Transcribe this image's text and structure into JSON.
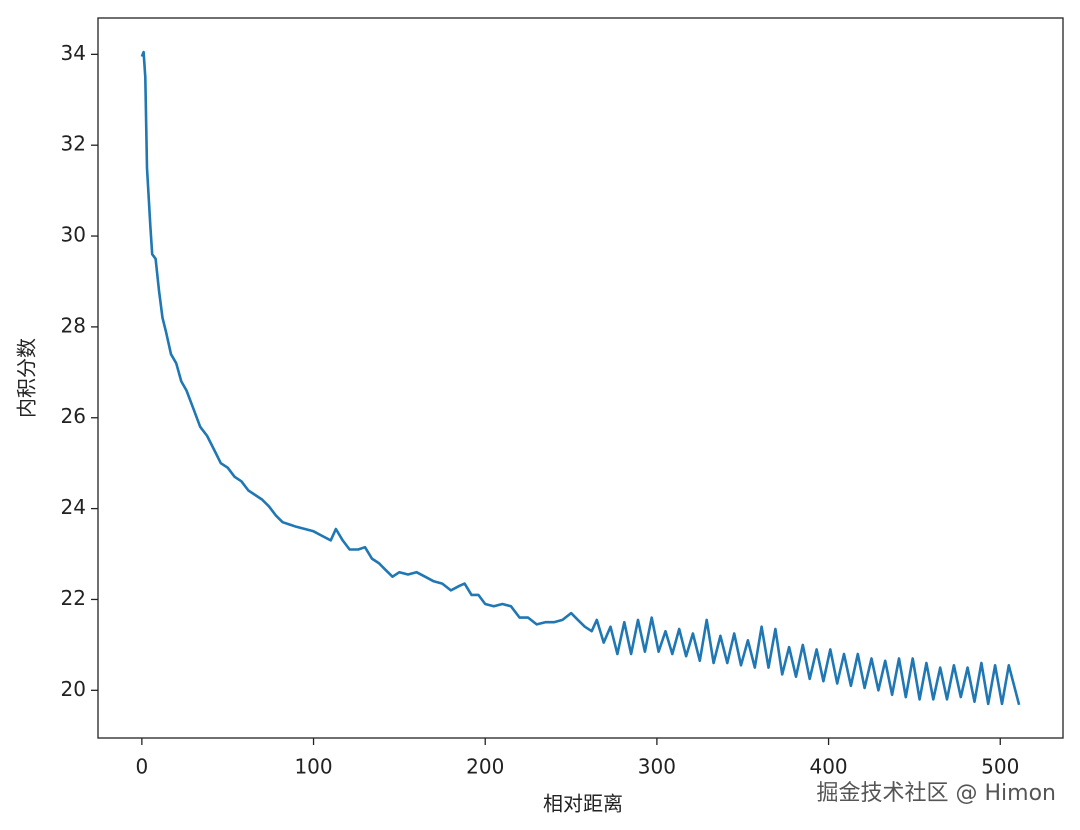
{
  "chart_data": {
    "type": "line",
    "xlabel": "相对距离",
    "ylabel": "内积分数",
    "watermark": "掘金技术社区 @ Himon",
    "xlim": [
      -25.55,
      536.55
    ],
    "ylim": [
      18.95,
      34.8
    ],
    "xticks": [
      0,
      100,
      200,
      300,
      400,
      500
    ],
    "yticks": [
      20,
      22,
      24,
      26,
      28,
      30,
      32,
      34
    ],
    "series": [
      {
        "color": "#1f77b4",
        "x": [
          0,
          1,
          2,
          3,
          5,
          6,
          8,
          10,
          12,
          14,
          17,
          20,
          23,
          26,
          30,
          34,
          38,
          42,
          46,
          50,
          54,
          58,
          62,
          66,
          70,
          74,
          78,
          82,
          86,
          90,
          95,
          100,
          105,
          110,
          113,
          117,
          121,
          126,
          130,
          134,
          138,
          142,
          146,
          150,
          155,
          160,
          165,
          170,
          175,
          180,
          185,
          188,
          192,
          196,
          200,
          205,
          210,
          215,
          220,
          225,
          230,
          235,
          240,
          245,
          250,
          254,
          258,
          262,
          265,
          269,
          273,
          277,
          281,
          285,
          289,
          293,
          297,
          301,
          305,
          309,
          313,
          317,
          321,
          325,
          329,
          333,
          337,
          341,
          345,
          349,
          353,
          357,
          361,
          365,
          369,
          373,
          377,
          381,
          385,
          389,
          393,
          397,
          401,
          405,
          409,
          413,
          417,
          421,
          425,
          429,
          433,
          437,
          441,
          445,
          449,
          453,
          457,
          461,
          465,
          469,
          473,
          477,
          481,
          485,
          489,
          493,
          497,
          501,
          505,
          511
        ],
        "values": [
          33.95,
          34.05,
          33.5,
          31.5,
          30.2,
          29.6,
          29.5,
          28.8,
          28.2,
          27.9,
          27.4,
          27.2,
          26.8,
          26.6,
          26.2,
          25.8,
          25.6,
          25.3,
          25.0,
          24.9,
          24.7,
          24.6,
          24.4,
          24.3,
          24.2,
          24.05,
          23.85,
          23.7,
          23.65,
          23.6,
          23.55,
          23.5,
          23.4,
          23.3,
          23.55,
          23.3,
          23.1,
          23.1,
          23.15,
          22.9,
          22.8,
          22.65,
          22.5,
          22.6,
          22.55,
          22.6,
          22.5,
          22.4,
          22.35,
          22.2,
          22.3,
          22.35,
          22.1,
          22.1,
          21.9,
          21.85,
          21.9,
          21.85,
          21.6,
          21.6,
          21.45,
          21.5,
          21.5,
          21.55,
          21.7,
          21.55,
          21.4,
          21.3,
          21.55,
          21.05,
          21.4,
          20.8,
          21.5,
          20.8,
          21.55,
          20.85,
          21.6,
          20.85,
          21.3,
          20.8,
          21.35,
          20.75,
          21.25,
          20.65,
          21.55,
          20.6,
          21.2,
          20.6,
          21.25,
          20.55,
          21.1,
          20.5,
          21.4,
          20.5,
          21.35,
          20.35,
          20.95,
          20.3,
          21.0,
          20.25,
          20.9,
          20.2,
          20.9,
          20.15,
          20.8,
          20.1,
          20.8,
          20.05,
          20.7,
          20.0,
          20.65,
          19.9,
          20.7,
          19.85,
          20.7,
          19.8,
          20.6,
          19.8,
          20.5,
          19.8,
          20.55,
          19.85,
          20.5,
          19.75,
          20.6,
          19.7,
          20.55,
          19.7,
          20.55,
          19.68
        ]
      }
    ]
  }
}
